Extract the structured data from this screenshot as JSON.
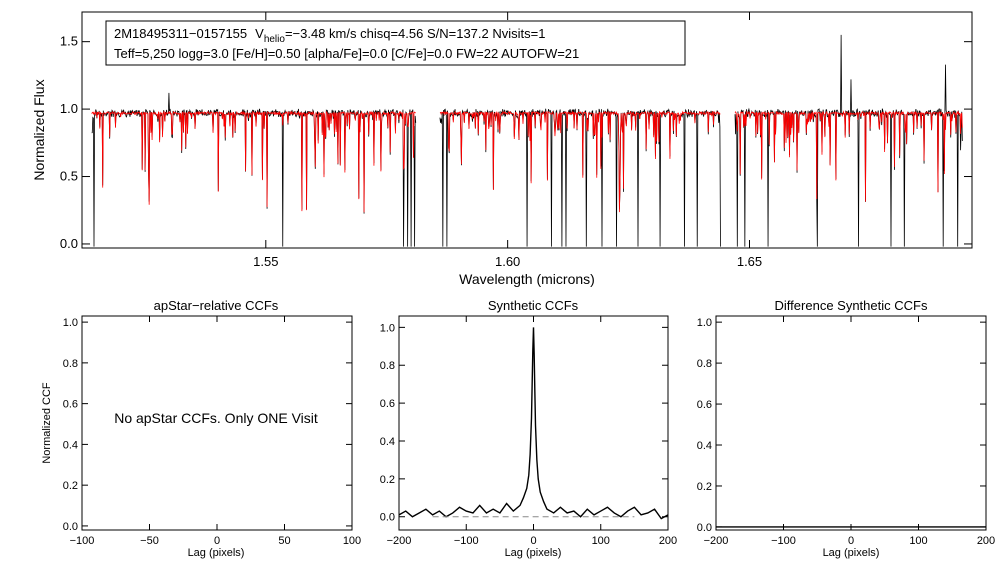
{
  "chart_data": [
    {
      "type": "line",
      "panel": "spectrum",
      "xlabel": "Wavelength (microns)",
      "ylabel": "Normalized Flux",
      "xlim": [
        1.512,
        1.696
      ],
      "ylim": [
        -0.03,
        1.72
      ],
      "xticks": [
        1.55,
        1.6,
        1.65
      ],
      "xtick_labels": [
        "1.55",
        "1.60",
        "1.65"
      ],
      "yticks": [
        0.0,
        0.5,
        1.0,
        1.5
      ],
      "ytick_labels": [
        "0.0",
        "0.5",
        "1.0",
        "1.5"
      ],
      "legend": {
        "line1_object": "2M18495311−0157155",
        "line1_v": "V",
        "line1_v_sub": "helio",
        "line1_rest": "=−3.48 km/s  chisq=4.56  S/N=137.2  Nvisits=1",
        "line2": "Teff=5,250 logg=3.0 [Fe/H]=0.50 [alpha/Fe]=0.0 [C/Fe]=0.0 FW=22 AUTOFW=21",
        "placement": "top-left"
      },
      "chips": [
        [
          1.514,
          1.581
        ],
        [
          1.586,
          1.644
        ],
        [
          1.647,
          1.694
        ]
      ],
      "continuum": 0.97,
      "series": [
        {
          "name": "observed",
          "color": "#000000",
          "spikes": [
            [
              1.669,
              1.55
            ],
            [
              1.6905,
              1.33
            ],
            [
              1.671,
              1.22
            ],
            [
              1.53,
              1.12
            ]
          ],
          "deep_lines": [
            1.5145,
            1.5535,
            1.5785,
            1.5793,
            1.58,
            1.5808,
            1.5866,
            1.5875,
            1.604,
            1.609,
            1.6112,
            1.612,
            1.6163,
            1.6195,
            1.6225,
            1.627,
            1.6315,
            1.6365,
            1.6392,
            1.644,
            1.6475,
            1.649,
            1.6538,
            1.664,
            1.6725,
            1.6792,
            1.682,
            1.69,
            1.693
          ]
        },
        {
          "name": "model",
          "color": "#ff0000"
        }
      ]
    },
    {
      "type": "line",
      "panel": "apstar-ccf",
      "title": "apStar−relative CCFs",
      "xlabel": "Lag (pixels)",
      "ylabel": "Normalized CCF",
      "xlim": [
        -100,
        100
      ],
      "ylim": [
        -0.02,
        1.03
      ],
      "xticks": [
        -100,
        -50,
        0,
        50,
        100
      ],
      "xtick_labels": [
        "−100",
        "−50",
        "0",
        "50",
        "100"
      ],
      "yticks": [
        0.0,
        0.2,
        0.4,
        0.6,
        0.8,
        1.0
      ],
      "ytick_labels": [
        "0.0",
        "0.2",
        "0.4",
        "0.6",
        "0.8",
        "1.0"
      ],
      "note": "No apStar CCFs.  Only ONE Visit",
      "series": []
    },
    {
      "type": "line",
      "panel": "synthetic-ccf",
      "title": "Synthetic CCFs",
      "xlabel": "Lag (pixels)",
      "xlim": [
        -200,
        200
      ],
      "ylim": [
        -0.07,
        1.06
      ],
      "xticks": [
        -200,
        -100,
        0,
        100,
        200
      ],
      "xtick_labels": [
        "−200",
        "−100",
        "0",
        "100",
        "200"
      ],
      "yticks": [
        0.0,
        0.2,
        0.4,
        0.6,
        0.8,
        1.0
      ],
      "ytick_labels": [
        "0.0",
        "0.2",
        "0.4",
        "0.6",
        "0.8",
        "1.0"
      ],
      "series": [
        {
          "name": "ccf",
          "color": "#000000",
          "x": [
            -200,
            -190,
            -180,
            -170,
            -160,
            -150,
            -140,
            -130,
            -120,
            -110,
            -100,
            -90,
            -80,
            -70,
            -60,
            -50,
            -40,
            -30,
            -20,
            -15,
            -10,
            -7,
            -5,
            -3,
            -2,
            -1,
            0,
            1,
            2,
            3,
            5,
            7,
            10,
            15,
            20,
            30,
            40,
            50,
            60,
            70,
            80,
            90,
            100,
            110,
            120,
            130,
            140,
            150,
            160,
            170,
            180,
            190,
            200
          ],
          "values": [
            0.01,
            0.03,
            0.0,
            0.02,
            0.04,
            0.01,
            0.03,
            0.0,
            0.02,
            0.05,
            0.03,
            0.02,
            0.06,
            0.02,
            0.04,
            0.02,
            0.07,
            0.03,
            0.06,
            0.1,
            0.15,
            0.22,
            0.33,
            0.52,
            0.7,
            0.88,
            1.0,
            0.86,
            0.66,
            0.48,
            0.3,
            0.2,
            0.13,
            0.08,
            0.04,
            0.02,
            0.05,
            0.02,
            0.03,
            0.0,
            0.04,
            0.01,
            0.03,
            0.05,
            0.02,
            0.0,
            0.03,
            0.05,
            0.01,
            0.02,
            0.04,
            -0.01,
            0.01
          ]
        },
        {
          "name": "baseline",
          "color": "#888888",
          "dashed": true,
          "y": 0.0,
          "xrange": [
            -150,
            150
          ]
        }
      ]
    },
    {
      "type": "line",
      "panel": "difference-ccf",
      "title": "Difference Synthetic CCFs",
      "xlabel": "Lag (pixels)",
      "xlim": [
        -200,
        200
      ],
      "ylim": [
        -0.015,
        1.03
      ],
      "xticks": [
        -200,
        -100,
        0,
        100,
        200
      ],
      "xtick_labels": [
        "−200",
        "−100",
        "0",
        "100",
        "200"
      ],
      "yticks": [
        0.0,
        0.2,
        0.4,
        0.6,
        0.8,
        1.0
      ],
      "ytick_labels": [
        "0.0",
        "0.2",
        "0.4",
        "0.6",
        "0.8",
        "1.0"
      ],
      "series": [
        {
          "name": "difference",
          "color": "#000000",
          "x": [
            -200,
            200
          ],
          "values": [
            0.0,
            0.0
          ]
        }
      ]
    }
  ]
}
